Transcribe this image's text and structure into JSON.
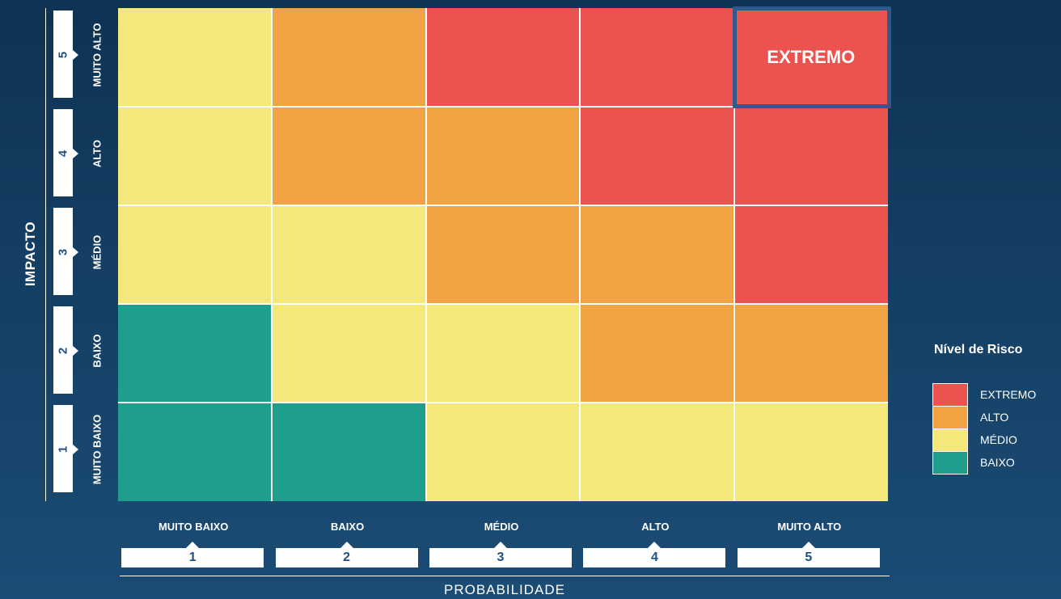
{
  "chart_data": {
    "type": "heatmap",
    "title": "",
    "xlabel": "PROBABILIDADE",
    "ylabel": "IMPACTO",
    "x_categories": [
      {
        "number": "1",
        "label": "MUITO BAIXO"
      },
      {
        "number": "2",
        "label": "BAIXO"
      },
      {
        "number": "3",
        "label": "MÉDIO"
      },
      {
        "number": "4",
        "label": "ALTO"
      },
      {
        "number": "5",
        "label": "MUITO ALTO"
      }
    ],
    "y_categories": [
      {
        "number": "1",
        "label": "MUITO BAIXO"
      },
      {
        "number": "2",
        "label": "BAIXO"
      },
      {
        "number": "3",
        "label": "MÉDIO"
      },
      {
        "number": "4",
        "label": "ALTO"
      },
      {
        "number": "5",
        "label": "MUITO ALTO"
      }
    ],
    "matrix_rows_top_to_bottom": [
      {
        "impacto": "5",
        "levels": [
          "MÉDIO",
          "ALTO",
          "EXTREMO",
          "EXTREMO",
          "EXTREMO"
        ]
      },
      {
        "impacto": "4",
        "levels": [
          "MÉDIO",
          "ALTO",
          "ALTO",
          "EXTREMO",
          "EXTREMO"
        ]
      },
      {
        "impacto": "3",
        "levels": [
          "MÉDIO",
          "MÉDIO",
          "ALTO",
          "ALTO",
          "EXTREMO"
        ]
      },
      {
        "impacto": "2",
        "levels": [
          "BAIXO",
          "MÉDIO",
          "MÉDIO",
          "ALTO",
          "ALTO"
        ]
      },
      {
        "impacto": "1",
        "levels": [
          "BAIXO",
          "BAIXO",
          "MÉDIO",
          "MÉDIO",
          "MÉDIO"
        ]
      }
    ],
    "highlight": {
      "probabilidade": "5",
      "impacto": "5",
      "text": "EXTREMO",
      "border_color": "#2e5b8c"
    },
    "legend": {
      "title": "Nível de Risco",
      "placement": "right",
      "items": [
        {
          "label": "EXTREMO",
          "color": "#eb5350"
        },
        {
          "label": "ALTO",
          "color": "#f1a343"
        },
        {
          "label": "MÉDIO",
          "color": "#f5e87a"
        },
        {
          "label": "BAIXO",
          "color": "#1f9e8e"
        }
      ]
    }
  }
}
